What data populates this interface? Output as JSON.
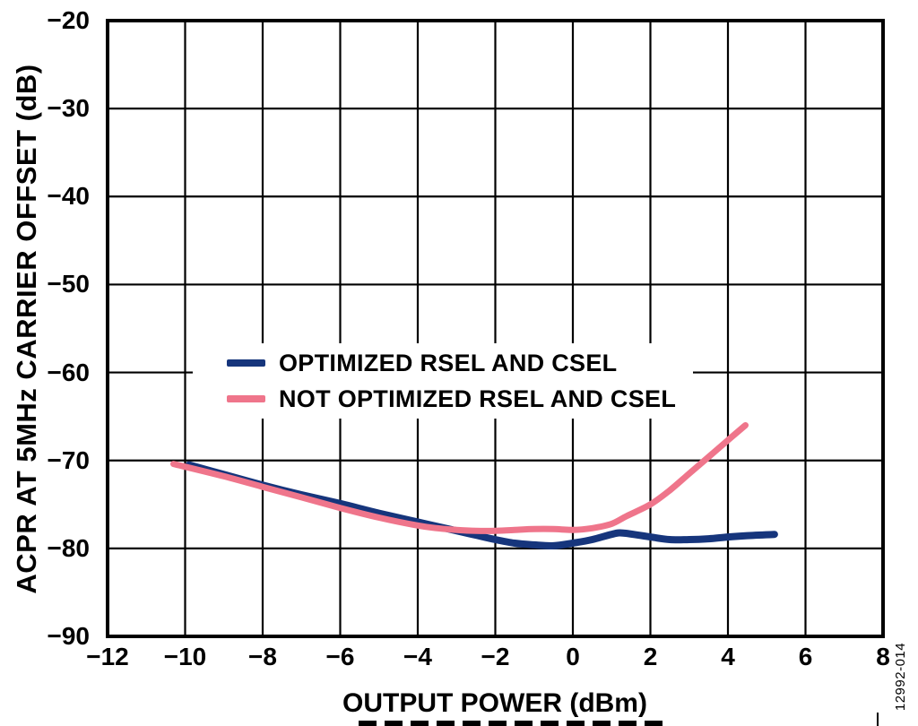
{
  "figure": {
    "code": "12992-014",
    "clipped_bottom_text_visible": true
  },
  "colors": {
    "axis": "#000000",
    "grid": "#000000",
    "background": "#ffffff",
    "series_optimized": "#16357c",
    "series_not_optimized": "#ef758b"
  },
  "chart_data": {
    "type": "line",
    "title": "",
    "xlabel": "OUTPUT POWER (dBm)",
    "ylabel": "ACPR AT 5MHz CARRIER OFFSET (dB)",
    "xlim": [
      -12,
      8
    ],
    "ylim": [
      -90,
      -20
    ],
    "grid": true,
    "legend_position": "inside-left-center",
    "x_ticks": [
      {
        "v": -12,
        "label": "−12"
      },
      {
        "v": -10,
        "label": "−10"
      },
      {
        "v": -8,
        "label": "−8"
      },
      {
        "v": -6,
        "label": "−6"
      },
      {
        "v": -4,
        "label": "−4"
      },
      {
        "v": -2,
        "label": "−2"
      },
      {
        "v": 0,
        "label": "0"
      },
      {
        "v": 2,
        "label": "2"
      },
      {
        "v": 4,
        "label": "4"
      },
      {
        "v": 6,
        "label": "6"
      },
      {
        "v": 8,
        "label": "8"
      }
    ],
    "y_ticks": [
      {
        "v": -20,
        "label": "−20"
      },
      {
        "v": -30,
        "label": "−30"
      },
      {
        "v": -40,
        "label": "−40"
      },
      {
        "v": -50,
        "label": "−50"
      },
      {
        "v": -60,
        "label": "−60"
      },
      {
        "v": -70,
        "label": "−70"
      },
      {
        "v": -80,
        "label": "−80"
      },
      {
        "v": -90,
        "label": "−90"
      }
    ],
    "series": [
      {
        "name": "OPTIMIZED RSEL AND CSEL",
        "color": "#16357c",
        "stroke_width": 8,
        "points": [
          [
            -9.9,
            -70.5
          ],
          [
            -9,
            -71.6
          ],
          [
            -8,
            -72.8
          ],
          [
            -7,
            -73.9
          ],
          [
            -6,
            -74.9
          ],
          [
            -5,
            -76.0
          ],
          [
            -4,
            -77.0
          ],
          [
            -3,
            -78.0
          ],
          [
            -2.5,
            -78.5
          ],
          [
            -2,
            -79.0
          ],
          [
            -1.5,
            -79.4
          ],
          [
            -1,
            -79.6
          ],
          [
            -0.5,
            -79.7
          ],
          [
            0,
            -79.4
          ],
          [
            0.5,
            -79.0
          ],
          [
            1,
            -78.4
          ],
          [
            1.3,
            -78.25
          ],
          [
            2,
            -78.7
          ],
          [
            2.5,
            -79.0
          ],
          [
            3,
            -79.0
          ],
          [
            3.5,
            -78.9
          ],
          [
            4,
            -78.7
          ],
          [
            4.5,
            -78.55
          ],
          [
            5.2,
            -78.4
          ]
        ]
      },
      {
        "name": "NOT OPTIMIZED RSEL AND CSEL",
        "color": "#ef758b",
        "stroke_width": 7,
        "points": [
          [
            -10.3,
            -70.4
          ],
          [
            -9,
            -71.8
          ],
          [
            -8,
            -73.0
          ],
          [
            -7,
            -74.2
          ],
          [
            -6,
            -75.4
          ],
          [
            -5,
            -76.5
          ],
          [
            -4,
            -77.4
          ],
          [
            -3.5,
            -77.7
          ],
          [
            -3,
            -77.9
          ],
          [
            -2.5,
            -78.0
          ],
          [
            -2,
            -78.0
          ],
          [
            -1.5,
            -77.9
          ],
          [
            -1,
            -77.8
          ],
          [
            -0.5,
            -77.8
          ],
          [
            0,
            -77.9
          ],
          [
            0.5,
            -77.7
          ],
          [
            1,
            -77.2
          ],
          [
            1.4,
            -76.3
          ],
          [
            2,
            -75.0
          ],
          [
            2.5,
            -73.4
          ],
          [
            3,
            -71.5
          ],
          [
            3.5,
            -69.6
          ],
          [
            4,
            -67.7
          ],
          [
            4.45,
            -66.0
          ]
        ]
      }
    ]
  }
}
